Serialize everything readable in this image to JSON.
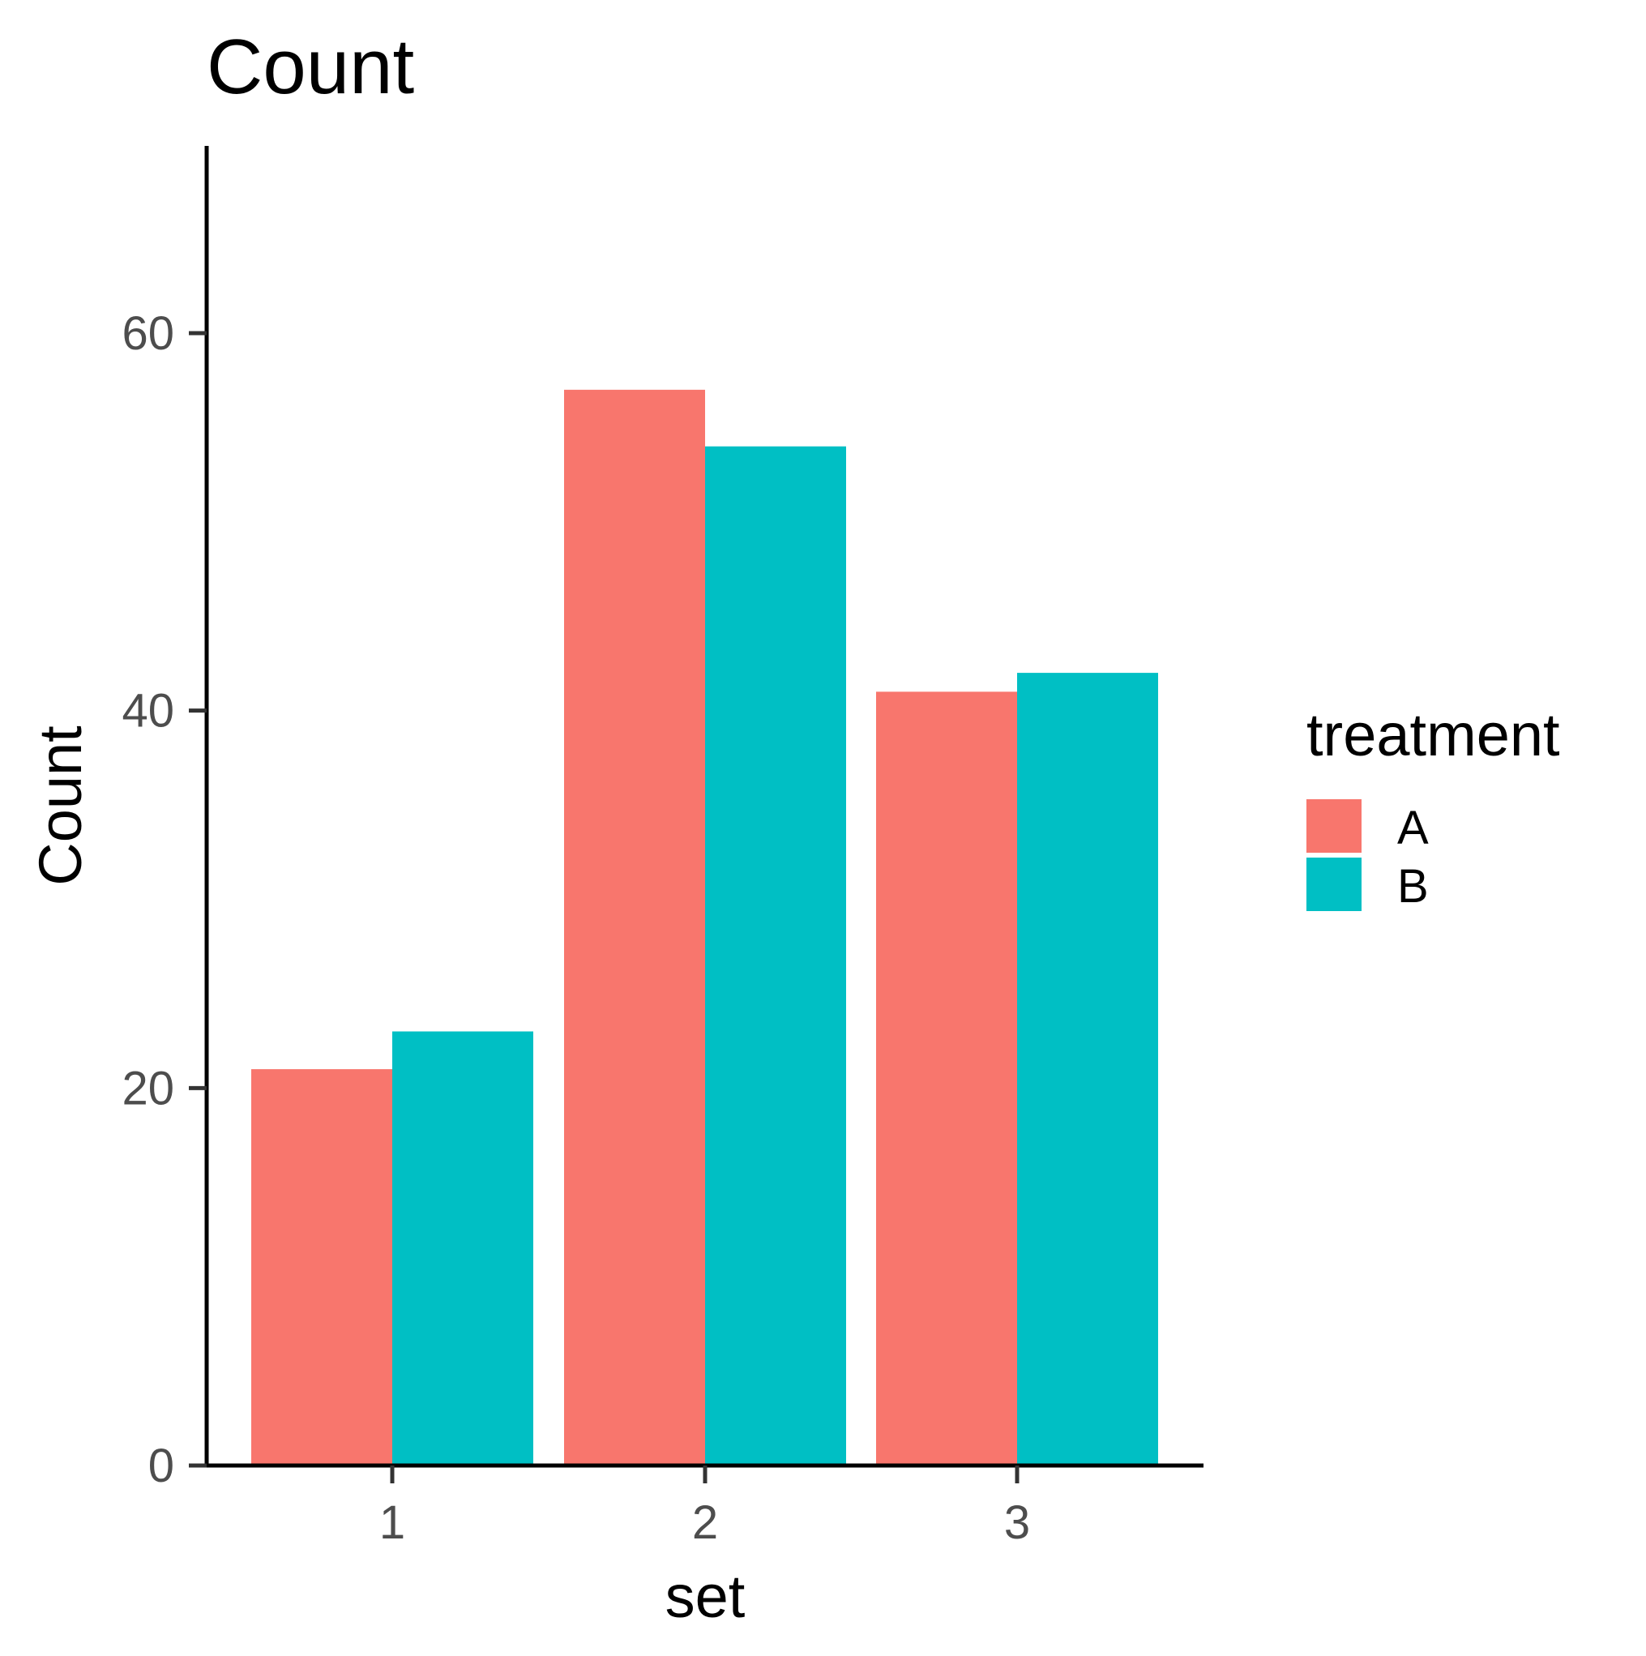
{
  "chart_data": {
    "type": "bar",
    "title": "Count",
    "xlabel": "set",
    "ylabel": "Count",
    "categories": [
      "1",
      "2",
      "3"
    ],
    "series": [
      {
        "name": "A",
        "values": [
          21,
          57,
          41
        ],
        "color": "#F8766D"
      },
      {
        "name": "B",
        "values": [
          23,
          54,
          42
        ],
        "color": "#00BFC4"
      }
    ],
    "ylim": [
      0,
      70
    ],
    "yticks": [
      0,
      20,
      40,
      60
    ],
    "legend": {
      "title": "treatment",
      "position": "right"
    },
    "grid": false
  }
}
